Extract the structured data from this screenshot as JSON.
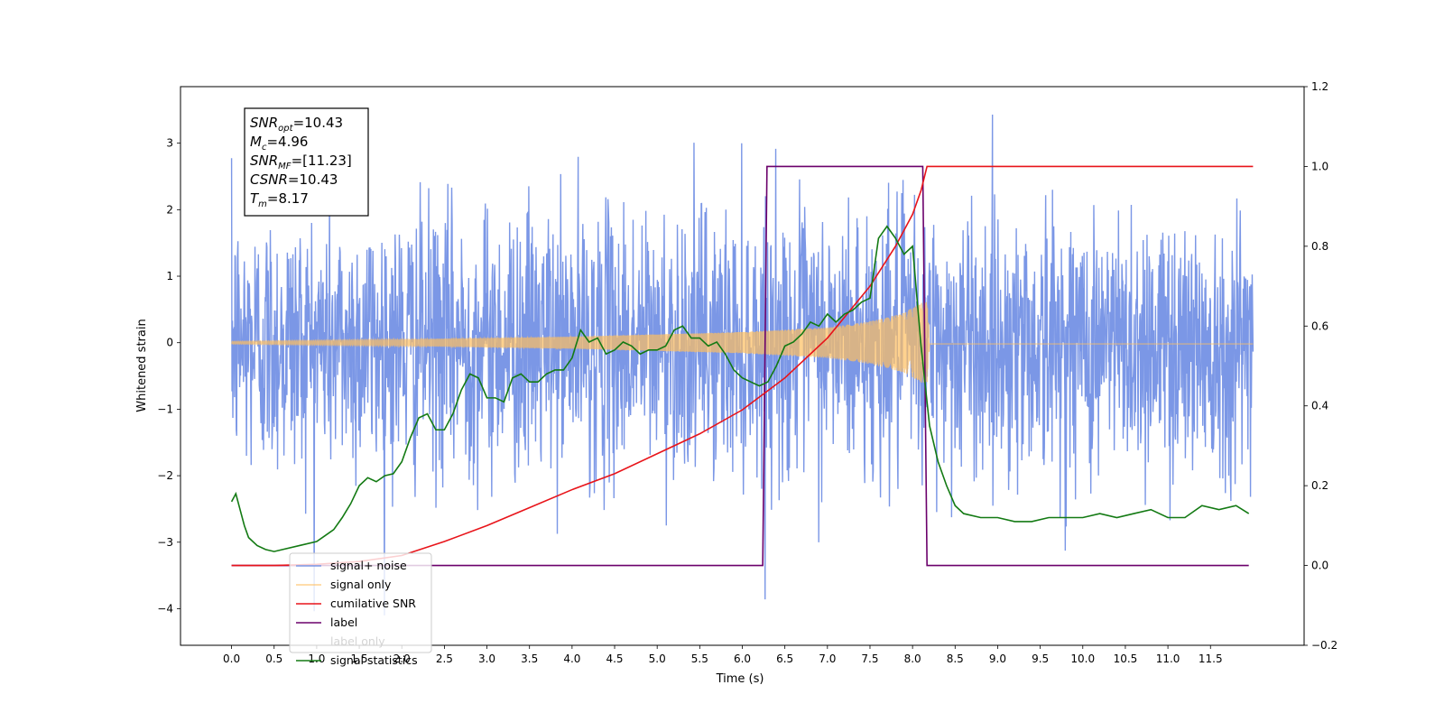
{
  "chart_data": {
    "type": "line",
    "xlabel": "Time (s)",
    "ylabel": "Whitened strain",
    "xlim": [
      -0.6,
      12.6
    ],
    "ylim": [
      -4.55,
      3.85
    ],
    "y2lim": [
      -0.2,
      1.2
    ],
    "x_ticks": [
      0.0,
      0.5,
      1.0,
      1.5,
      2.0,
      2.5,
      3.0,
      3.5,
      4.0,
      4.5,
      5.0,
      5.5,
      6.0,
      6.5,
      7.0,
      7.5,
      8.0,
      8.5,
      9.0,
      9.5,
      10.0,
      10.5,
      11.0,
      11.5
    ],
    "x_tick_labels": [
      "0.0",
      "0.5",
      "1.0",
      "1.5",
      "2.0",
      "2.5",
      "3.0",
      "3.5",
      "4.0",
      "4.5",
      "5.0",
      "5.5",
      "6.0",
      "6.5",
      "7.0",
      "7.5",
      "8.0",
      "8.5",
      "9.0",
      "9.5",
      "10.0",
      "10.5",
      "11.0",
      "11.5"
    ],
    "y_ticks": [
      -4,
      -3,
      -2,
      -1,
      0,
      1,
      2,
      3
    ],
    "y_tick_labels": [
      "−4",
      "−3",
      "−2",
      "−1",
      "0",
      "1",
      "2",
      "3"
    ],
    "y2_ticks": [
      -0.2,
      0.0,
      0.2,
      0.4,
      0.6,
      0.8,
      1.0,
      1.2
    ],
    "y2_tick_labels": [
      "−0.2",
      "0.0",
      "0.2",
      "0.4",
      "0.6",
      "0.8",
      "1.0",
      "1.2"
    ],
    "grid": false,
    "legend_position": "lower-left",
    "annotation": [
      {
        "sym": "SNR",
        "sub": "opt",
        "text": "=10.43"
      },
      {
        "sym": "M",
        "sub": "c",
        "text": "=4.96"
      },
      {
        "sym": "SNR",
        "sub": "MF",
        "text": "=[11.23]"
      },
      {
        "sym": "CSNR",
        "sub": "",
        "text": "=10.43"
      },
      {
        "sym": "T",
        "sub": "m",
        "text": "=8.17"
      }
    ],
    "series": [
      {
        "name": "signal+ noise",
        "axis": "left",
        "color": "#7b97e6",
        "noise": {
          "x_start": 0.0,
          "x_end": 12.0,
          "std": 1.0,
          "min": -4.1,
          "max": 3.5
        }
      },
      {
        "name": "signal only",
        "axis": "left",
        "color": "#ffbf5f",
        "envelope": {
          "x": [
            0.0,
            2.0,
            4.0,
            6.0,
            7.0,
            7.5,
            7.9,
            8.1,
            8.17,
            8.2,
            12.0
          ],
          "amp": [
            0.02,
            0.05,
            0.09,
            0.16,
            0.23,
            0.32,
            0.45,
            0.6,
            0.62,
            0.02,
            0.02
          ]
        }
      },
      {
        "name": "cumilative SNR",
        "axis": "right",
        "color": "#e8141a",
        "x": [
          0.0,
          0.5,
          1.0,
          1.5,
          2.0,
          2.5,
          3.0,
          3.5,
          4.0,
          4.5,
          5.0,
          5.5,
          6.0,
          6.5,
          7.0,
          7.5,
          7.8,
          8.0,
          8.1,
          8.17,
          8.18,
          12.0
        ],
        "values": [
          0.0,
          0.0,
          0.003,
          0.01,
          0.025,
          0.06,
          0.1,
          0.145,
          0.19,
          0.23,
          0.28,
          0.33,
          0.39,
          0.47,
          0.57,
          0.7,
          0.8,
          0.88,
          0.94,
          1.0,
          1.0,
          1.0
        ]
      },
      {
        "name": "label",
        "axis": "right",
        "color": "#6b006b",
        "x": [
          0.0,
          6.24,
          6.29,
          8.12,
          8.17,
          11.95
        ],
        "values": [
          0.0,
          0.0,
          1.0,
          1.0,
          0.0,
          0.0
        ]
      },
      {
        "name": "label only",
        "axis": "right",
        "color": "#cccccc",
        "hidden": true,
        "x": [],
        "values": []
      },
      {
        "name": "signal statistics",
        "axis": "right",
        "color": "#137a13",
        "x": [
          0.0,
          0.05,
          0.1,
          0.15,
          0.2,
          0.3,
          0.4,
          0.5,
          0.6,
          0.8,
          1.0,
          1.1,
          1.2,
          1.3,
          1.4,
          1.5,
          1.6,
          1.7,
          1.8,
          1.9,
          2.0,
          2.1,
          2.2,
          2.3,
          2.4,
          2.5,
          2.6,
          2.7,
          2.8,
          2.9,
          3.0,
          3.1,
          3.2,
          3.3,
          3.4,
          3.5,
          3.6,
          3.7,
          3.8,
          3.9,
          4.0,
          4.1,
          4.2,
          4.3,
          4.4,
          4.5,
          4.6,
          4.7,
          4.8,
          4.9,
          5.0,
          5.1,
          5.2,
          5.3,
          5.4,
          5.5,
          5.6,
          5.7,
          5.8,
          5.9,
          6.0,
          6.1,
          6.2,
          6.3,
          6.4,
          6.5,
          6.6,
          6.7,
          6.8,
          6.9,
          7.0,
          7.1,
          7.2,
          7.3,
          7.4,
          7.5,
          7.6,
          7.7,
          7.8,
          7.9,
          8.0,
          8.1,
          8.2,
          8.3,
          8.4,
          8.5,
          8.6,
          8.8,
          9.0,
          9.2,
          9.4,
          9.6,
          9.8,
          10.0,
          10.2,
          10.4,
          10.6,
          10.8,
          11.0,
          11.2,
          11.4,
          11.6,
          11.8,
          11.95
        ],
        "values": [
          0.16,
          0.18,
          0.14,
          0.1,
          0.07,
          0.05,
          0.04,
          0.035,
          0.04,
          0.05,
          0.06,
          0.075,
          0.09,
          0.12,
          0.155,
          0.2,
          0.22,
          0.21,
          0.225,
          0.23,
          0.26,
          0.32,
          0.37,
          0.38,
          0.34,
          0.34,
          0.38,
          0.44,
          0.48,
          0.47,
          0.42,
          0.42,
          0.41,
          0.47,
          0.48,
          0.46,
          0.46,
          0.48,
          0.49,
          0.49,
          0.52,
          0.59,
          0.56,
          0.57,
          0.53,
          0.54,
          0.56,
          0.55,
          0.53,
          0.54,
          0.54,
          0.55,
          0.59,
          0.6,
          0.57,
          0.57,
          0.55,
          0.56,
          0.53,
          0.49,
          0.47,
          0.46,
          0.45,
          0.46,
          0.5,
          0.55,
          0.56,
          0.58,
          0.61,
          0.6,
          0.63,
          0.61,
          0.63,
          0.64,
          0.66,
          0.67,
          0.82,
          0.85,
          0.82,
          0.78,
          0.8,
          0.55,
          0.35,
          0.26,
          0.2,
          0.15,
          0.13,
          0.12,
          0.12,
          0.11,
          0.11,
          0.12,
          0.12,
          0.12,
          0.13,
          0.12,
          0.13,
          0.14,
          0.12,
          0.12,
          0.15,
          0.14,
          0.15,
          0.13
        ]
      }
    ]
  }
}
